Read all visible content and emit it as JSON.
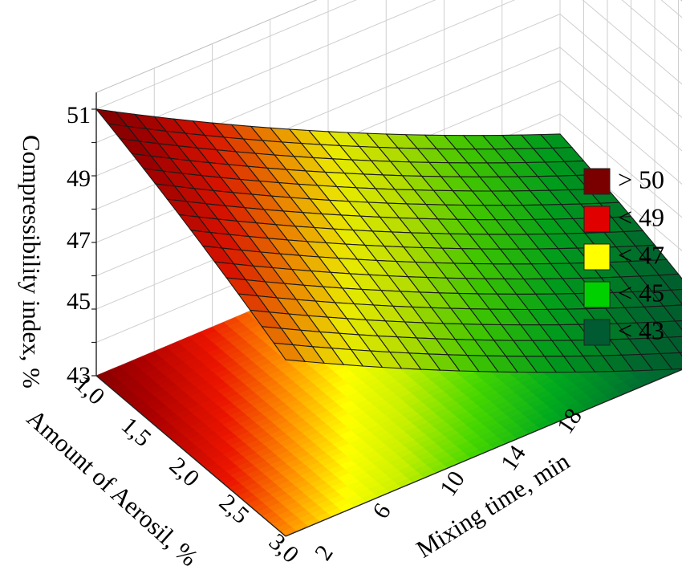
{
  "chart_data": {
    "type": "surface3d",
    "title": "",
    "zlabel": "Compressibility index, %",
    "xlabel": "Amount of Aerosil, %",
    "ylabel": "Mixing time, min",
    "zlim": [
      43,
      51
    ],
    "z_ticks": [
      "43",
      "45",
      "47",
      "49",
      "51"
    ],
    "x_ticks": [
      "1,0",
      "1,5",
      "2,0",
      "2,5",
      "3,0"
    ],
    "y_ticks": [
      "2",
      "6",
      "10",
      "14",
      "18"
    ],
    "xlim": [
      1.0,
      3.0
    ],
    "ylim": [
      2,
      18
    ],
    "surface_samples": [
      {
        "aerosil": 1.0,
        "time": 2,
        "ci": 51.0
      },
      {
        "aerosil": 3.0,
        "time": 2,
        "ci": 48.3
      },
      {
        "aerosil": 1.0,
        "time": 18,
        "ci": 44.4
      },
      {
        "aerosil": 3.0,
        "time": 18,
        "ci": 42.3
      }
    ],
    "contour_projection": true,
    "grid": true,
    "legend": {
      "placement": "right",
      "entries": [
        {
          "label": "> 50",
          "color": "#7a0000"
        },
        {
          "label": "< 49",
          "color": "#e00000"
        },
        {
          "label": "< 47",
          "color": "#ffff00"
        },
        {
          "label": "< 45",
          "color": "#00d000"
        },
        {
          "label": "< 43",
          "color": "#005a32"
        }
      ]
    }
  }
}
